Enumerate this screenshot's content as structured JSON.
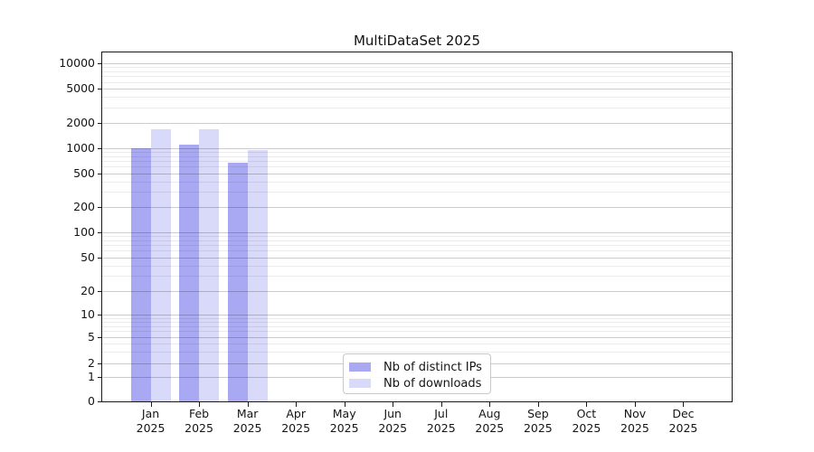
{
  "title": "MultiDataSet 2025",
  "chart_data": {
    "type": "bar",
    "title": "MultiDataSet 2025",
    "categories": [
      "Jan",
      "Feb",
      "Mar",
      "Apr",
      "May",
      "Jun",
      "Jul",
      "Aug",
      "Sep",
      "Oct",
      "Nov",
      "Dec"
    ],
    "category_year": "2025",
    "series": [
      {
        "name": "Nb of distinct IPs",
        "color": "#a9a9f3",
        "values": [
          1000,
          1100,
          670,
          null,
          null,
          null,
          null,
          null,
          null,
          null,
          null,
          null
        ]
      },
      {
        "name": "Nb of downloads",
        "color": "#d9d9f9",
        "values": [
          1650,
          1660,
          950,
          null,
          null,
          null,
          null,
          null,
          null,
          null,
          null,
          null
        ]
      }
    ],
    "yticks": [
      0,
      1,
      2,
      5,
      10,
      20,
      50,
      100,
      200,
      500,
      1000,
      2000,
      5000,
      10000
    ],
    "scale": "symlog",
    "ylim": [
      0,
      13500
    ],
    "grid": "horizontal major and minor lines drawn over bars",
    "legend": {
      "position": "inside-bottom-center"
    }
  }
}
